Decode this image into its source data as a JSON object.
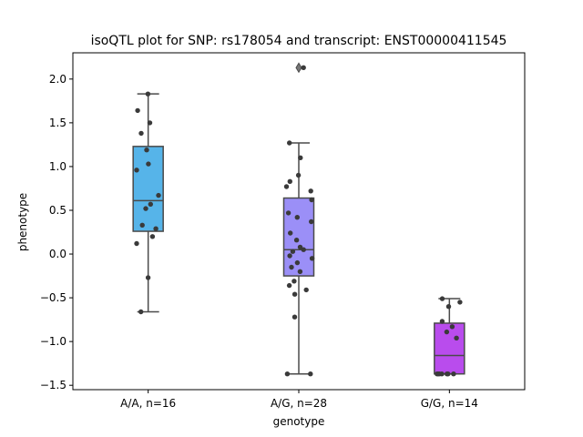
{
  "chart_data": {
    "type": "box",
    "title": "isoQTL plot for SNP: rs178054 and transcript: ENST00000411545",
    "xlabel": "genotype",
    "ylabel": "phenotype",
    "ylim": [
      -1.55,
      2.3
    ],
    "yticks": [
      -1.5,
      -1.0,
      -0.5,
      0.0,
      0.5,
      1.0,
      1.5,
      2.0
    ],
    "ytick_labels": [
      "−1.5",
      "−1.0",
      "−0.5",
      "0.0",
      "0.5",
      "1.0",
      "1.5",
      "2.0"
    ],
    "grid": false,
    "categories": [
      "A/A, n=16",
      "A/G, n=28",
      "G/G, n=14"
    ],
    "box_colors": [
      "#56b4e9",
      "#9b8ff7",
      "#b94ced"
    ],
    "boxes": [
      {
        "category": "A/A, n=16",
        "whisker_low": -0.66,
        "q1": 0.26,
        "median": 0.61,
        "q3": 1.23,
        "whisker_high": 1.83,
        "outliers": []
      },
      {
        "category": "A/G, n=28",
        "whisker_low": -1.37,
        "q1": -0.25,
        "median": 0.05,
        "q3": 0.64,
        "whisker_high": 1.27,
        "outliers": [
          2.13
        ]
      },
      {
        "category": "G/G, n=14",
        "whisker_low": -1.37,
        "q1": -1.37,
        "median": -1.16,
        "q3": -0.79,
        "whisker_high": -0.51,
        "outliers": []
      }
    ],
    "points": [
      {
        "category": "A/A, n=16",
        "values": [
          1.83,
          1.5,
          1.64,
          1.38,
          1.19,
          1.03,
          0.96,
          0.67,
          0.57,
          0.52,
          0.33,
          0.29,
          0.2,
          0.12,
          -0.27,
          -0.66
        ]
      },
      {
        "category": "A/G, n=28",
        "values": [
          2.13,
          1.27,
          1.1,
          0.9,
          0.83,
          0.77,
          0.72,
          0.62,
          0.47,
          0.42,
          0.37,
          0.24,
          0.16,
          0.08,
          0.05,
          0.03,
          -0.02,
          -0.05,
          -0.1,
          -0.15,
          -0.2,
          -0.31,
          -0.36,
          -0.41,
          -0.46,
          -0.72,
          -1.37,
          -1.37
        ]
      },
      {
        "category": "G/G, n=14",
        "values": [
          -0.51,
          -0.55,
          -0.6,
          -0.77,
          -0.83,
          -0.89,
          -0.96,
          -1.37,
          -1.37,
          -1.37,
          -1.37,
          -1.37,
          -1.37,
          -1.37
        ]
      }
    ]
  },
  "colors": {
    "point": "#3a3a3a",
    "line": "#4a4a4a"
  }
}
